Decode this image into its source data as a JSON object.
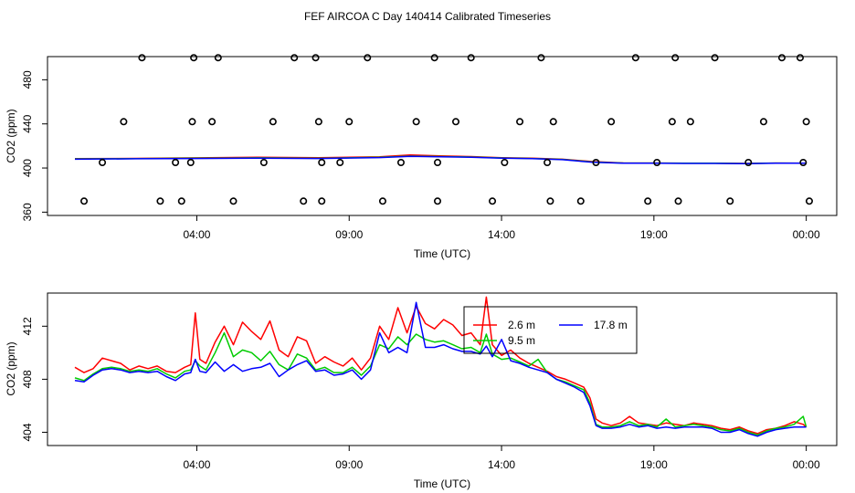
{
  "title": "FEF AIRCOA C  Day 140414  Calibrated Timeseries",
  "colors": {
    "s26": "#ff0000",
    "s95": "#00cc00",
    "s178": "#0000ff",
    "axis": "#000000"
  },
  "chart_data": [
    {
      "type": "line",
      "name": "top-panel",
      "xlabel": "Time (UTC)",
      "ylabel": "CO2 (ppm)",
      "x_unit": "hours UTC",
      "xlim": [
        -0.9,
        25.0
      ],
      "ylim": [
        357,
        501
      ],
      "xticks": [
        4,
        9,
        14,
        19,
        24
      ],
      "xtick_labels": [
        "04:00",
        "09:00",
        "14:00",
        "19:00",
        "00:00"
      ],
      "yticks": [
        360,
        400,
        440,
        480
      ],
      "ytick_labels": [
        "360",
        "400",
        "440",
        "480"
      ],
      "series": [
        {
          "name": "2.6 m",
          "color_key": "s26",
          "x": [
            0,
            2,
            4,
            6,
            8,
            10,
            11,
            12,
            13,
            14,
            15,
            16,
            17,
            18,
            19,
            20,
            21,
            22,
            23,
            24
          ],
          "y": [
            408.5,
            408.7,
            409.2,
            409.8,
            409.3,
            410.2,
            411.8,
            411.0,
            410.4,
            409.4,
            408.9,
            408.0,
            405.8,
            404.6,
            404.5,
            404.4,
            404.3,
            404.2,
            404.5,
            404.4
          ]
        },
        {
          "name": "9.5 m",
          "color_key": "s95",
          "x": [
            0,
            2,
            4,
            6,
            8,
            10,
            11,
            12,
            13,
            14,
            15,
            16,
            17,
            18,
            19,
            20,
            21,
            22,
            23,
            24
          ],
          "y": [
            408.3,
            408.5,
            408.9,
            409.2,
            408.8,
            409.7,
            410.8,
            410.4,
            410.0,
            409.1,
            408.6,
            407.8,
            405.4,
            404.5,
            404.5,
            404.3,
            404.3,
            404.1,
            404.5,
            404.4
          ]
        },
        {
          "name": "17.8 m",
          "color_key": "s178",
          "x": [
            0,
            2,
            4,
            6,
            8,
            10,
            11,
            12,
            13,
            14,
            15,
            16,
            17,
            18,
            19,
            20,
            21,
            22,
            23,
            24
          ],
          "y": [
            408.0,
            408.4,
            408.6,
            408.9,
            408.6,
            409.5,
            410.6,
            410.2,
            409.8,
            408.9,
            408.5,
            407.6,
            405.2,
            404.4,
            404.4,
            404.2,
            404.2,
            404.0,
            404.4,
            404.4
          ]
        },
        {
          "name": "flags",
          "type": "scatter",
          "marker": "open-circle",
          "x": [
            0.3,
            0.9,
            1.6,
            2.2,
            2.8,
            3.3,
            3.5,
            3.8,
            3.85,
            3.9,
            4.5,
            4.7,
            5.2,
            6.2,
            6.5,
            7.2,
            7.5,
            7.9,
            8.0,
            8.1,
            8.1,
            8.7,
            9.0,
            9.6,
            10.1,
            10.7,
            11.2,
            11.8,
            11.9,
            11.9,
            12.5,
            13.0,
            13.7,
            14.1,
            14.6,
            15.3,
            15.5,
            15.6,
            15.7,
            16.6,
            17.1,
            17.6,
            18.4,
            18.8,
            19.1,
            19.6,
            19.7,
            19.8,
            20.2,
            21.0,
            21.5,
            22.1,
            22.6,
            23.2,
            23.8,
            23.9,
            24.0,
            24.1
          ],
          "y": [
            370,
            405,
            442,
            500,
            370,
            405,
            370,
            405,
            442,
            500,
            442,
            500,
            370,
            405,
            442,
            500,
            370,
            500,
            442,
            405,
            370,
            405,
            442,
            500,
            370,
            405,
            442,
            500,
            370,
            405,
            442,
            500,
            370,
            405,
            442,
            500,
            405,
            370,
            442,
            370,
            405,
            442,
            500,
            370,
            405,
            442,
            500,
            370,
            442,
            500,
            370,
            405,
            442,
            500,
            500,
            405,
            442,
            370
          ]
        }
      ]
    },
    {
      "type": "line",
      "name": "bottom-panel",
      "xlabel": "Time (UTC)",
      "ylabel": "CO2 (ppm)",
      "x_unit": "hours UTC",
      "xlim": [
        -0.9,
        25.0
      ],
      "ylim": [
        403.0,
        414.5
      ],
      "xticks": [
        4,
        9,
        14,
        19,
        24
      ],
      "xtick_labels": [
        "04:00",
        "09:00",
        "14:00",
        "19:00",
        "00:00"
      ],
      "yticks": [
        404,
        408,
        412
      ],
      "ytick_labels": [
        "404",
        "408",
        "412"
      ],
      "legend": {
        "position": "top-center",
        "entries": [
          "2.6 m",
          "9.5 m",
          "17.8 m"
        ]
      },
      "series": [
        {
          "name": "2.6 m",
          "color_key": "s26",
          "x": [
            0.0,
            0.3,
            0.6,
            0.9,
            1.2,
            1.5,
            1.8,
            2.1,
            2.4,
            2.7,
            3.0,
            3.3,
            3.6,
            3.8,
            3.95,
            4.1,
            4.3,
            4.6,
            4.9,
            5.2,
            5.5,
            5.8,
            6.1,
            6.4,
            6.7,
            7.0,
            7.3,
            7.6,
            7.9,
            8.2,
            8.5,
            8.8,
            9.1,
            9.4,
            9.7,
            10.0,
            10.3,
            10.6,
            10.9,
            11.2,
            11.5,
            11.8,
            12.1,
            12.4,
            12.7,
            13.0,
            13.3,
            13.5,
            13.7,
            14.0,
            14.3,
            14.6,
            14.9,
            15.2,
            15.5,
            15.8,
            16.1,
            16.4,
            16.7,
            16.9,
            17.1,
            17.3,
            17.6,
            17.9,
            18.2,
            18.5,
            18.8,
            19.1,
            19.4,
            19.7,
            20.0,
            20.3,
            20.6,
            20.9,
            21.2,
            21.5,
            21.8,
            22.1,
            22.4,
            22.7,
            23.0,
            23.3,
            23.6,
            23.9,
            24.0
          ],
          "y": [
            408.9,
            408.5,
            408.8,
            409.6,
            409.4,
            409.2,
            408.7,
            409.0,
            408.8,
            409.0,
            408.6,
            408.5,
            408.9,
            409.1,
            413.0,
            409.5,
            409.2,
            410.8,
            412.0,
            410.6,
            412.3,
            411.6,
            411.0,
            412.4,
            410.2,
            409.7,
            411.2,
            410.9,
            409.2,
            409.7,
            409.3,
            409.0,
            409.6,
            408.7,
            409.6,
            412.0,
            411.0,
            413.4,
            411.5,
            413.5,
            412.2,
            411.8,
            412.5,
            412.1,
            411.3,
            411.5,
            410.6,
            414.2,
            410.6,
            409.8,
            410.2,
            409.6,
            409.2,
            408.9,
            408.6,
            408.2,
            408.0,
            407.7,
            407.4,
            406.6,
            405.0,
            404.7,
            404.5,
            404.7,
            405.2,
            404.7,
            404.6,
            404.5,
            404.7,
            404.6,
            404.5,
            404.7,
            404.6,
            404.5,
            404.3,
            404.2,
            404.4,
            404.1,
            403.9,
            404.2,
            404.3,
            404.5,
            404.8,
            404.6,
            404.4
          ]
        },
        {
          "name": "9.5 m",
          "color_key": "s95",
          "x": [
            0.0,
            0.3,
            0.6,
            0.9,
            1.2,
            1.5,
            1.8,
            2.1,
            2.4,
            2.7,
            3.0,
            3.3,
            3.6,
            3.8,
            3.95,
            4.1,
            4.3,
            4.6,
            4.9,
            5.2,
            5.5,
            5.8,
            6.1,
            6.4,
            6.7,
            7.0,
            7.3,
            7.6,
            7.9,
            8.2,
            8.5,
            8.8,
            9.1,
            9.4,
            9.7,
            10.0,
            10.3,
            10.6,
            10.9,
            11.2,
            11.5,
            11.8,
            12.1,
            12.4,
            12.7,
            13.0,
            13.3,
            13.5,
            13.7,
            14.0,
            14.3,
            14.6,
            14.9,
            15.2,
            15.5,
            15.8,
            16.1,
            16.4,
            16.7,
            16.9,
            17.1,
            17.3,
            17.6,
            17.9,
            18.2,
            18.5,
            18.8,
            19.1,
            19.4,
            19.7,
            20.0,
            20.3,
            20.6,
            20.9,
            21.2,
            21.5,
            21.8,
            22.1,
            22.4,
            22.7,
            23.0,
            23.3,
            23.6,
            23.9,
            24.0
          ],
          "y": [
            408.1,
            407.9,
            408.4,
            408.8,
            408.9,
            408.8,
            408.6,
            408.7,
            408.6,
            408.8,
            408.4,
            408.1,
            408.6,
            408.7,
            409.4,
            409.0,
            408.7,
            410.0,
            411.5,
            409.7,
            410.2,
            410.0,
            409.4,
            410.1,
            409.1,
            408.7,
            409.9,
            409.6,
            408.7,
            408.9,
            408.5,
            408.5,
            408.9,
            408.3,
            409.0,
            410.6,
            410.3,
            411.2,
            410.6,
            411.4,
            411.0,
            410.8,
            410.9,
            410.6,
            410.3,
            410.4,
            410.0,
            411.4,
            409.9,
            409.5,
            409.6,
            409.3,
            409.0,
            409.5,
            408.5,
            408.0,
            407.8,
            407.5,
            407.2,
            406.2,
            404.6,
            404.4,
            404.4,
            404.5,
            404.8,
            404.5,
            404.6,
            404.4,
            405.0,
            404.4,
            404.5,
            404.6,
            404.5,
            404.4,
            404.2,
            404.1,
            404.3,
            404.0,
            403.8,
            404.1,
            404.3,
            404.4,
            404.6,
            405.2,
            404.4
          ]
        },
        {
          "name": "17.8 m",
          "color_key": "s178",
          "x": [
            0.0,
            0.3,
            0.6,
            0.9,
            1.2,
            1.5,
            1.8,
            2.1,
            2.4,
            2.7,
            3.0,
            3.3,
            3.6,
            3.8,
            3.95,
            4.1,
            4.3,
            4.6,
            4.9,
            5.2,
            5.5,
            5.8,
            6.1,
            6.4,
            6.7,
            7.0,
            7.3,
            7.6,
            7.9,
            8.2,
            8.5,
            8.8,
            9.1,
            9.4,
            9.7,
            10.0,
            10.3,
            10.6,
            10.9,
            11.2,
            11.5,
            11.8,
            12.1,
            12.4,
            12.7,
            13.0,
            13.3,
            13.5,
            13.7,
            14.0,
            14.3,
            14.6,
            14.9,
            15.2,
            15.5,
            15.8,
            16.1,
            16.4,
            16.7,
            16.9,
            17.1,
            17.3,
            17.6,
            17.9,
            18.2,
            18.5,
            18.8,
            19.1,
            19.4,
            19.7,
            20.0,
            20.3,
            20.6,
            20.9,
            21.2,
            21.5,
            21.8,
            22.1,
            22.4,
            22.7,
            23.0,
            23.3,
            23.6,
            23.9,
            24.0
          ],
          "y": [
            407.9,
            407.8,
            408.3,
            408.7,
            408.8,
            408.7,
            408.5,
            408.6,
            408.5,
            408.6,
            408.2,
            407.9,
            408.4,
            408.5,
            409.5,
            408.6,
            408.5,
            409.3,
            408.6,
            409.1,
            408.6,
            408.8,
            408.9,
            409.2,
            408.2,
            408.7,
            409.1,
            409.4,
            408.6,
            408.7,
            408.3,
            408.4,
            408.7,
            408.0,
            408.7,
            411.5,
            410.0,
            410.4,
            410.0,
            413.8,
            410.4,
            410.4,
            410.6,
            410.3,
            410.1,
            410.1,
            409.9,
            410.5,
            409.7,
            411.0,
            409.4,
            409.2,
            408.9,
            408.7,
            408.5,
            408.0,
            407.7,
            407.4,
            407.0,
            406.0,
            404.5,
            404.3,
            404.3,
            404.4,
            404.6,
            404.4,
            404.5,
            404.3,
            404.4,
            404.3,
            404.4,
            404.4,
            404.4,
            404.3,
            404.0,
            404.0,
            404.2,
            403.9,
            403.7,
            404.0,
            404.2,
            404.3,
            404.4,
            404.4,
            404.4
          ]
        }
      ]
    }
  ]
}
